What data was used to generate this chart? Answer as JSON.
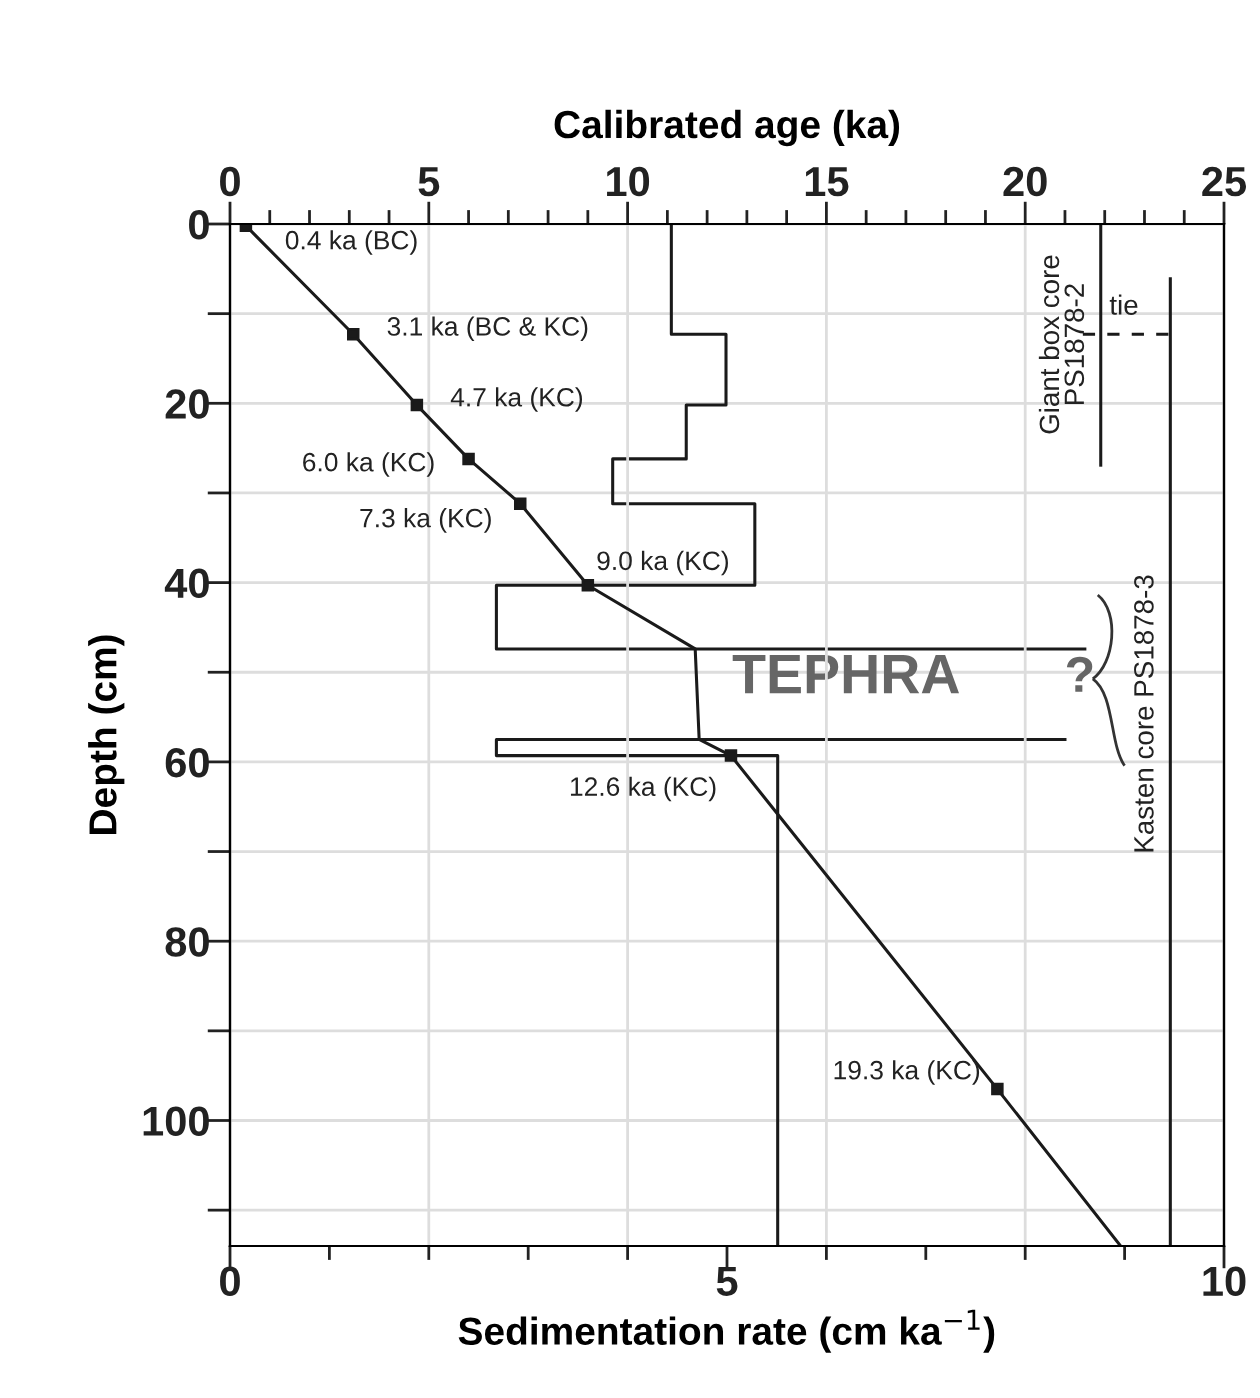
{
  "chart_data": {
    "type": "line",
    "xlabel": "Sedimentation rate (cm ka$^{−1}$)",
    "x2label": "Calibrated age (ka)",
    "ylabel": "Depth (cm)",
    "xlim": [
      0,
      10
    ],
    "xticks": [
      0,
      {
        "value": 1,
        "label": null
      },
      {
        "value": 2,
        "label": null
      },
      {
        "value": 3,
        "label": null
      },
      {
        "value": 4,
        "label": null
      },
      5,
      {
        "value": 6,
        "label": null
      },
      {
        "value": 7,
        "label": null
      },
      {
        "value": 8,
        "label": null
      },
      {
        "value": 9,
        "label": null
      },
      10
    ],
    "x2lim": [
      0,
      25
    ],
    "x2ticks": [
      0,
      {
        "value": 1,
        "label": null
      },
      {
        "value": 2,
        "label": null
      },
      {
        "value": 3,
        "label": null
      },
      {
        "value": 4,
        "label": null
      },
      5,
      {
        "value": 6,
        "label": null
      },
      {
        "value": 7,
        "label": null
      },
      {
        "value": 8,
        "label": null
      },
      {
        "value": 9,
        "label": null
      },
      10,
      {
        "value": 11,
        "label": null
      },
      {
        "value": 12,
        "label": null
      },
      {
        "value": 13,
        "label": null
      },
      {
        "value": 14,
        "label": null
      },
      15,
      {
        "value": 16,
        "label": null
      },
      {
        "value": 17,
        "label": null
      },
      {
        "value": 18,
        "label": null
      },
      {
        "value": 19,
        "label": null
      },
      20,
      {
        "value": 21,
        "label": null
      },
      {
        "value": 22,
        "label": null
      },
      {
        "value": 23,
        "label": null
      },
      {
        "value": 24,
        "label": null
      },
      25
    ],
    "ylim": [
      114,
      0
    ],
    "yticks": [
      0,
      {
        "value": 10,
        "label": null
      },
      20,
      {
        "value": 30,
        "label": null
      },
      40,
      {
        "value": 50,
        "label": null
      },
      60,
      {
        "value": 70,
        "label": null
      },
      80,
      {
        "value": 90,
        "label": null
      },
      100,
      {
        "value": 110,
        "label": null
      }
    ],
    "grid": true,
    "series": [
      {
        "axis": "x2",
        "color": "#1a1a1a",
        "x": [
          0.4,
          3.1,
          4.7,
          6.0,
          7.3,
          9.0,
          11.7,
          11.8,
          12.6,
          19.3,
          22.4
        ],
        "values": [
          0.2,
          12.3,
          20.2,
          26.2,
          31.2,
          40.3,
          47.4,
          57.5,
          59.3,
          96.5,
          114
        ]
      },
      {
        "axis": "x2",
        "type": "scatter",
        "color": "#1a1a1a",
        "marker": "square",
        "x": [
          0.4,
          3.1,
          4.7,
          6.0,
          7.3,
          9.0,
          12.6,
          19.3
        ],
        "values": [
          0.2,
          12.3,
          20.2,
          26.2,
          31.2,
          40.3,
          59.3,
          96.5
        ]
      },
      {
        "color": "#1a1a1a",
        "x": [
          4.44,
          4.44,
          4.99,
          4.99,
          4.59,
          4.59,
          3.85,
          3.85,
          5.28,
          5.28,
          2.68,
          2.68,
          8.6,
          null,
          8.4,
          2.68,
          2.68,
          5.51,
          5.51
        ],
        "values": [
          0,
          12.3,
          12.3,
          20.2,
          20.2,
          26.2,
          26.2,
          31.2,
          31.2,
          40.3,
          40.3,
          47.4,
          47.4,
          null,
          57.5,
          57.5,
          59.3,
          59.3,
          114
        ]
      },
      {
        "axis": "x2",
        "name": "Giant box core PS1878-2",
        "color": "#1a1a1a",
        "x": [
          21.9,
          21.9
        ],
        "values": [
          0,
          26.9
        ]
      },
      {
        "axis": "x2",
        "name": "Kasten core PS1878-3",
        "color": "#1a1a1a",
        "x": [
          23.65,
          23.65
        ],
        "values": [
          6.1,
          114
        ]
      },
      {
        "axis": "x2",
        "name": "tie",
        "color": "#1a1a1a",
        "line_style": "dashed",
        "x": [
          21.45,
          23.8
        ],
        "values": [
          12.3,
          12.3
        ]
      }
    ],
    "annotations": [
      "TEPHRA",
      "?",
      "0.4 ka (BC)",
      "3.1 ka (BC & KC)",
      "4.7 ka (KC)",
      "6.0 ka (KC)",
      "7.3 ka (KC)",
      "9.0 ka (KC)",
      "12.6 ka (KC)",
      "19.3 ka (KC)"
    ]
  }
}
